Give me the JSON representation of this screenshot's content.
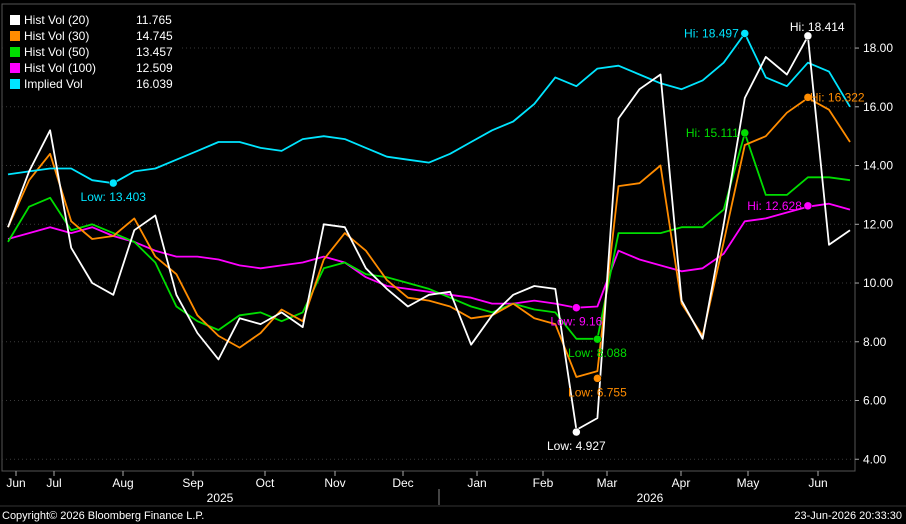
{
  "chart_data": {
    "type": "line",
    "y_ticks": [
      "4.00",
      "6.00",
      "8.00",
      "10.00",
      "12.00",
      "14.00",
      "16.00",
      "18.00"
    ],
    "ylim": [
      3.6,
      19.5
    ],
    "x_month_labels": [
      "Jun",
      "Jul",
      "Aug",
      "Sep",
      "Oct",
      "Nov",
      "Dec",
      "Jan",
      "Feb",
      "Mar",
      "Apr",
      "May",
      "Jun"
    ],
    "x_year_labels": [
      "2025",
      "2026"
    ],
    "series": [
      {
        "name": "Hist Vol (20)",
        "last": "11.765",
        "color": "#ffffff",
        "values": [
          11.9,
          13.8,
          15.2,
          11.2,
          10.0,
          9.6,
          11.8,
          12.3,
          9.6,
          8.3,
          7.4,
          8.8,
          8.6,
          9.0,
          8.5,
          12.0,
          11.9,
          10.5,
          9.8,
          9.2,
          9.6,
          9.7,
          7.9,
          8.9,
          9.6,
          9.9,
          9.8,
          5.0,
          5.4,
          15.6,
          16.6,
          17.1,
          9.4,
          8.1,
          12.0,
          16.3,
          17.7,
          17.1,
          18.4,
          11.3,
          11.8
        ]
      },
      {
        "name": "Hist Vol (30)",
        "last": "14.745",
        "color": "#ff8c00",
        "values": [
          11.9,
          13.5,
          14.4,
          12.1,
          11.5,
          11.6,
          12.2,
          10.9,
          10.3,
          8.9,
          8.2,
          7.8,
          8.3,
          9.1,
          8.7,
          10.8,
          11.7,
          11.1,
          10.1,
          9.5,
          9.4,
          9.2,
          8.8,
          8.9,
          9.3,
          8.8,
          8.6,
          6.8,
          7.0,
          13.3,
          13.4,
          14.0,
          9.3,
          8.2,
          11.4,
          14.7,
          15.0,
          15.8,
          16.3,
          15.9,
          14.8
        ]
      },
      {
        "name": "Hist Vol (50)",
        "last": "13.457",
        "color": "#00dd00",
        "values": [
          11.4,
          12.6,
          12.9,
          11.8,
          12.0,
          11.7,
          11.4,
          10.7,
          9.2,
          8.7,
          8.4,
          8.9,
          9.0,
          8.7,
          9.0,
          10.5,
          10.7,
          10.3,
          10.2,
          10.0,
          9.8,
          9.5,
          9.2,
          9.0,
          9.3,
          9.1,
          9.0,
          8.1,
          8.1,
          11.7,
          11.7,
          11.7,
          11.9,
          11.9,
          12.5,
          15.1,
          13.0,
          13.0,
          13.6,
          13.6,
          13.5
        ]
      },
      {
        "name": "Hist Vol (100)",
        "last": "12.509",
        "color": "#ff00ff",
        "values": [
          11.5,
          11.7,
          11.9,
          11.7,
          11.9,
          11.6,
          11.4,
          11.1,
          10.9,
          10.9,
          10.8,
          10.6,
          10.5,
          10.6,
          10.7,
          10.9,
          10.7,
          10.2,
          9.9,
          9.8,
          9.7,
          9.6,
          9.5,
          9.3,
          9.3,
          9.4,
          9.3,
          9.16,
          9.2,
          11.1,
          10.8,
          10.6,
          10.4,
          10.5,
          11.0,
          12.1,
          12.2,
          12.4,
          12.6,
          12.7,
          12.5
        ]
      },
      {
        "name": "Implied Vol",
        "last": "16.039",
        "color": "#00e5ff",
        "values": [
          13.7,
          13.8,
          13.9,
          13.9,
          13.5,
          13.4,
          13.8,
          13.9,
          14.2,
          14.5,
          14.8,
          14.8,
          14.6,
          14.5,
          14.9,
          15.0,
          14.9,
          14.6,
          14.3,
          14.2,
          14.1,
          14.4,
          14.8,
          15.2,
          15.5,
          16.1,
          17.0,
          16.7,
          17.3,
          17.4,
          17.1,
          16.8,
          16.6,
          16.9,
          17.5,
          18.497,
          17.0,
          16.7,
          17.5,
          17.2,
          16.0
        ]
      }
    ],
    "annotations": [
      {
        "text": "Low: 13.403",
        "x_index": 5,
        "y": 13.403,
        "color": "#00e5ff",
        "pos": "below"
      },
      {
        "text": "Hi: 18.497",
        "x_index": 35,
        "y": 18.497,
        "color": "#00e5ff",
        "pos": "left"
      },
      {
        "text": "Hi: 18.414",
        "x_index": 38,
        "y": 18.414,
        "color": "#ffffff",
        "pos": "above"
      },
      {
        "text": "Hi: 16.322",
        "x_index": 38,
        "y": 16.322,
        "color": "#ff8c00",
        "pos": "right"
      },
      {
        "text": "Hi: 15.111",
        "x_index": 35,
        "y": 15.111,
        "color": "#00dd00",
        "pos": "left"
      },
      {
        "text": "Hi: 12.628",
        "x_index": 38,
        "y": 12.628,
        "color": "#ff00ff",
        "pos": "left"
      },
      {
        "text": "Low: 9.16",
        "x_index": 27,
        "y": 9.16,
        "color": "#ff00ff",
        "pos": "below"
      },
      {
        "text": "Low: 8.088",
        "x_index": 28,
        "y": 8.088,
        "color": "#00dd00",
        "pos": "below"
      },
      {
        "text": "Low: 6.755",
        "x_index": 28,
        "y": 6.755,
        "color": "#ff8c00",
        "pos": "below"
      },
      {
        "text": "Low: 4.927",
        "x_index": 27,
        "y": 4.927,
        "color": "#ffffff",
        "pos": "below"
      }
    ]
  },
  "footer": {
    "copyright": "Copyright© 2026 Bloomberg Finance L.P.",
    "timestamp": "23-Jun-2026 20:33:30"
  }
}
